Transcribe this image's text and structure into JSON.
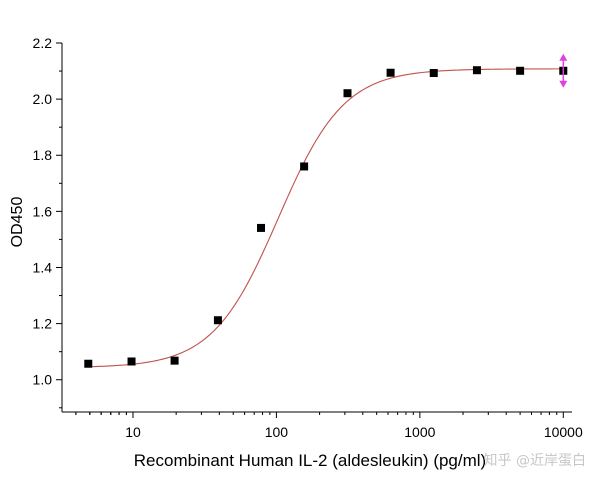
{
  "chart_data": {
    "type": "scatter",
    "title": "",
    "xlabel": "Recombinant Human IL-2 (aldesleukin) (pg/ml)",
    "ylabel": "OD450",
    "xscale": "log",
    "xlim": [
      3.2,
      11500
    ],
    "ylim": [
      0.885,
      2.2
    ],
    "x_ticks": [
      10,
      100,
      1000,
      10000
    ],
    "x_tick_labels": [
      "10",
      "100",
      "1000",
      "10000"
    ],
    "y_ticks": [
      1.0,
      1.2,
      1.4,
      1.6,
      1.8,
      2.0,
      2.2
    ],
    "y_tick_labels": [
      "1.0",
      "1.2",
      "1.4",
      "1.6",
      "1.8",
      "2.0",
      "2.2"
    ],
    "grid": false,
    "legend": "none",
    "series": [
      {
        "x": [
          4.88,
          9.77,
          19.5,
          39.1,
          78.1,
          156,
          313,
          625,
          1250,
          2500,
          5000,
          10000
        ],
        "y": [
          1.057,
          1.065,
          1.068,
          1.212,
          1.541,
          1.76,
          2.021,
          2.094,
          2.093,
          2.103,
          2.101,
          2.101
        ],
        "marker": "square",
        "color": "#000000"
      }
    ],
    "fit_curve": {
      "model": "4PL",
      "bottom": 1.043,
      "top": 2.108,
      "ec50": 103,
      "hill": 1.9,
      "color": "#c0504d"
    },
    "point_marker": {
      "x": 10000,
      "y": 2.101,
      "shape": "double-arrow-vertical",
      "color": "#e040e0"
    },
    "watermark": "知乎 @近岸蛋白"
  }
}
